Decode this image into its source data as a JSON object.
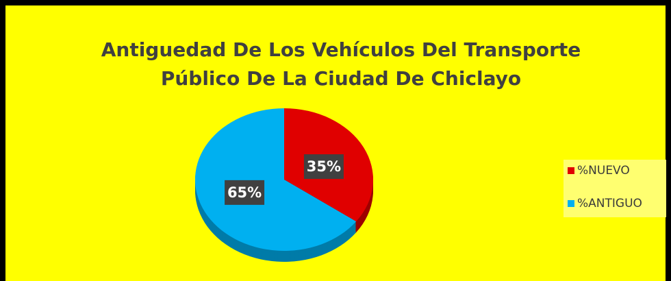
{
  "chart_data": {
    "type": "pie",
    "title": "Antiguedad De Los Vehículos Del Transporte Público De La Ciudad De Chiclayo",
    "categories": [
      "%NUEVO",
      "%ANTIGUO"
    ],
    "values": [
      35,
      65
    ],
    "value_labels": [
      "35%",
      "65%"
    ],
    "colors": [
      "#e00000",
      "#00b0f0"
    ],
    "legend": "right"
  }
}
